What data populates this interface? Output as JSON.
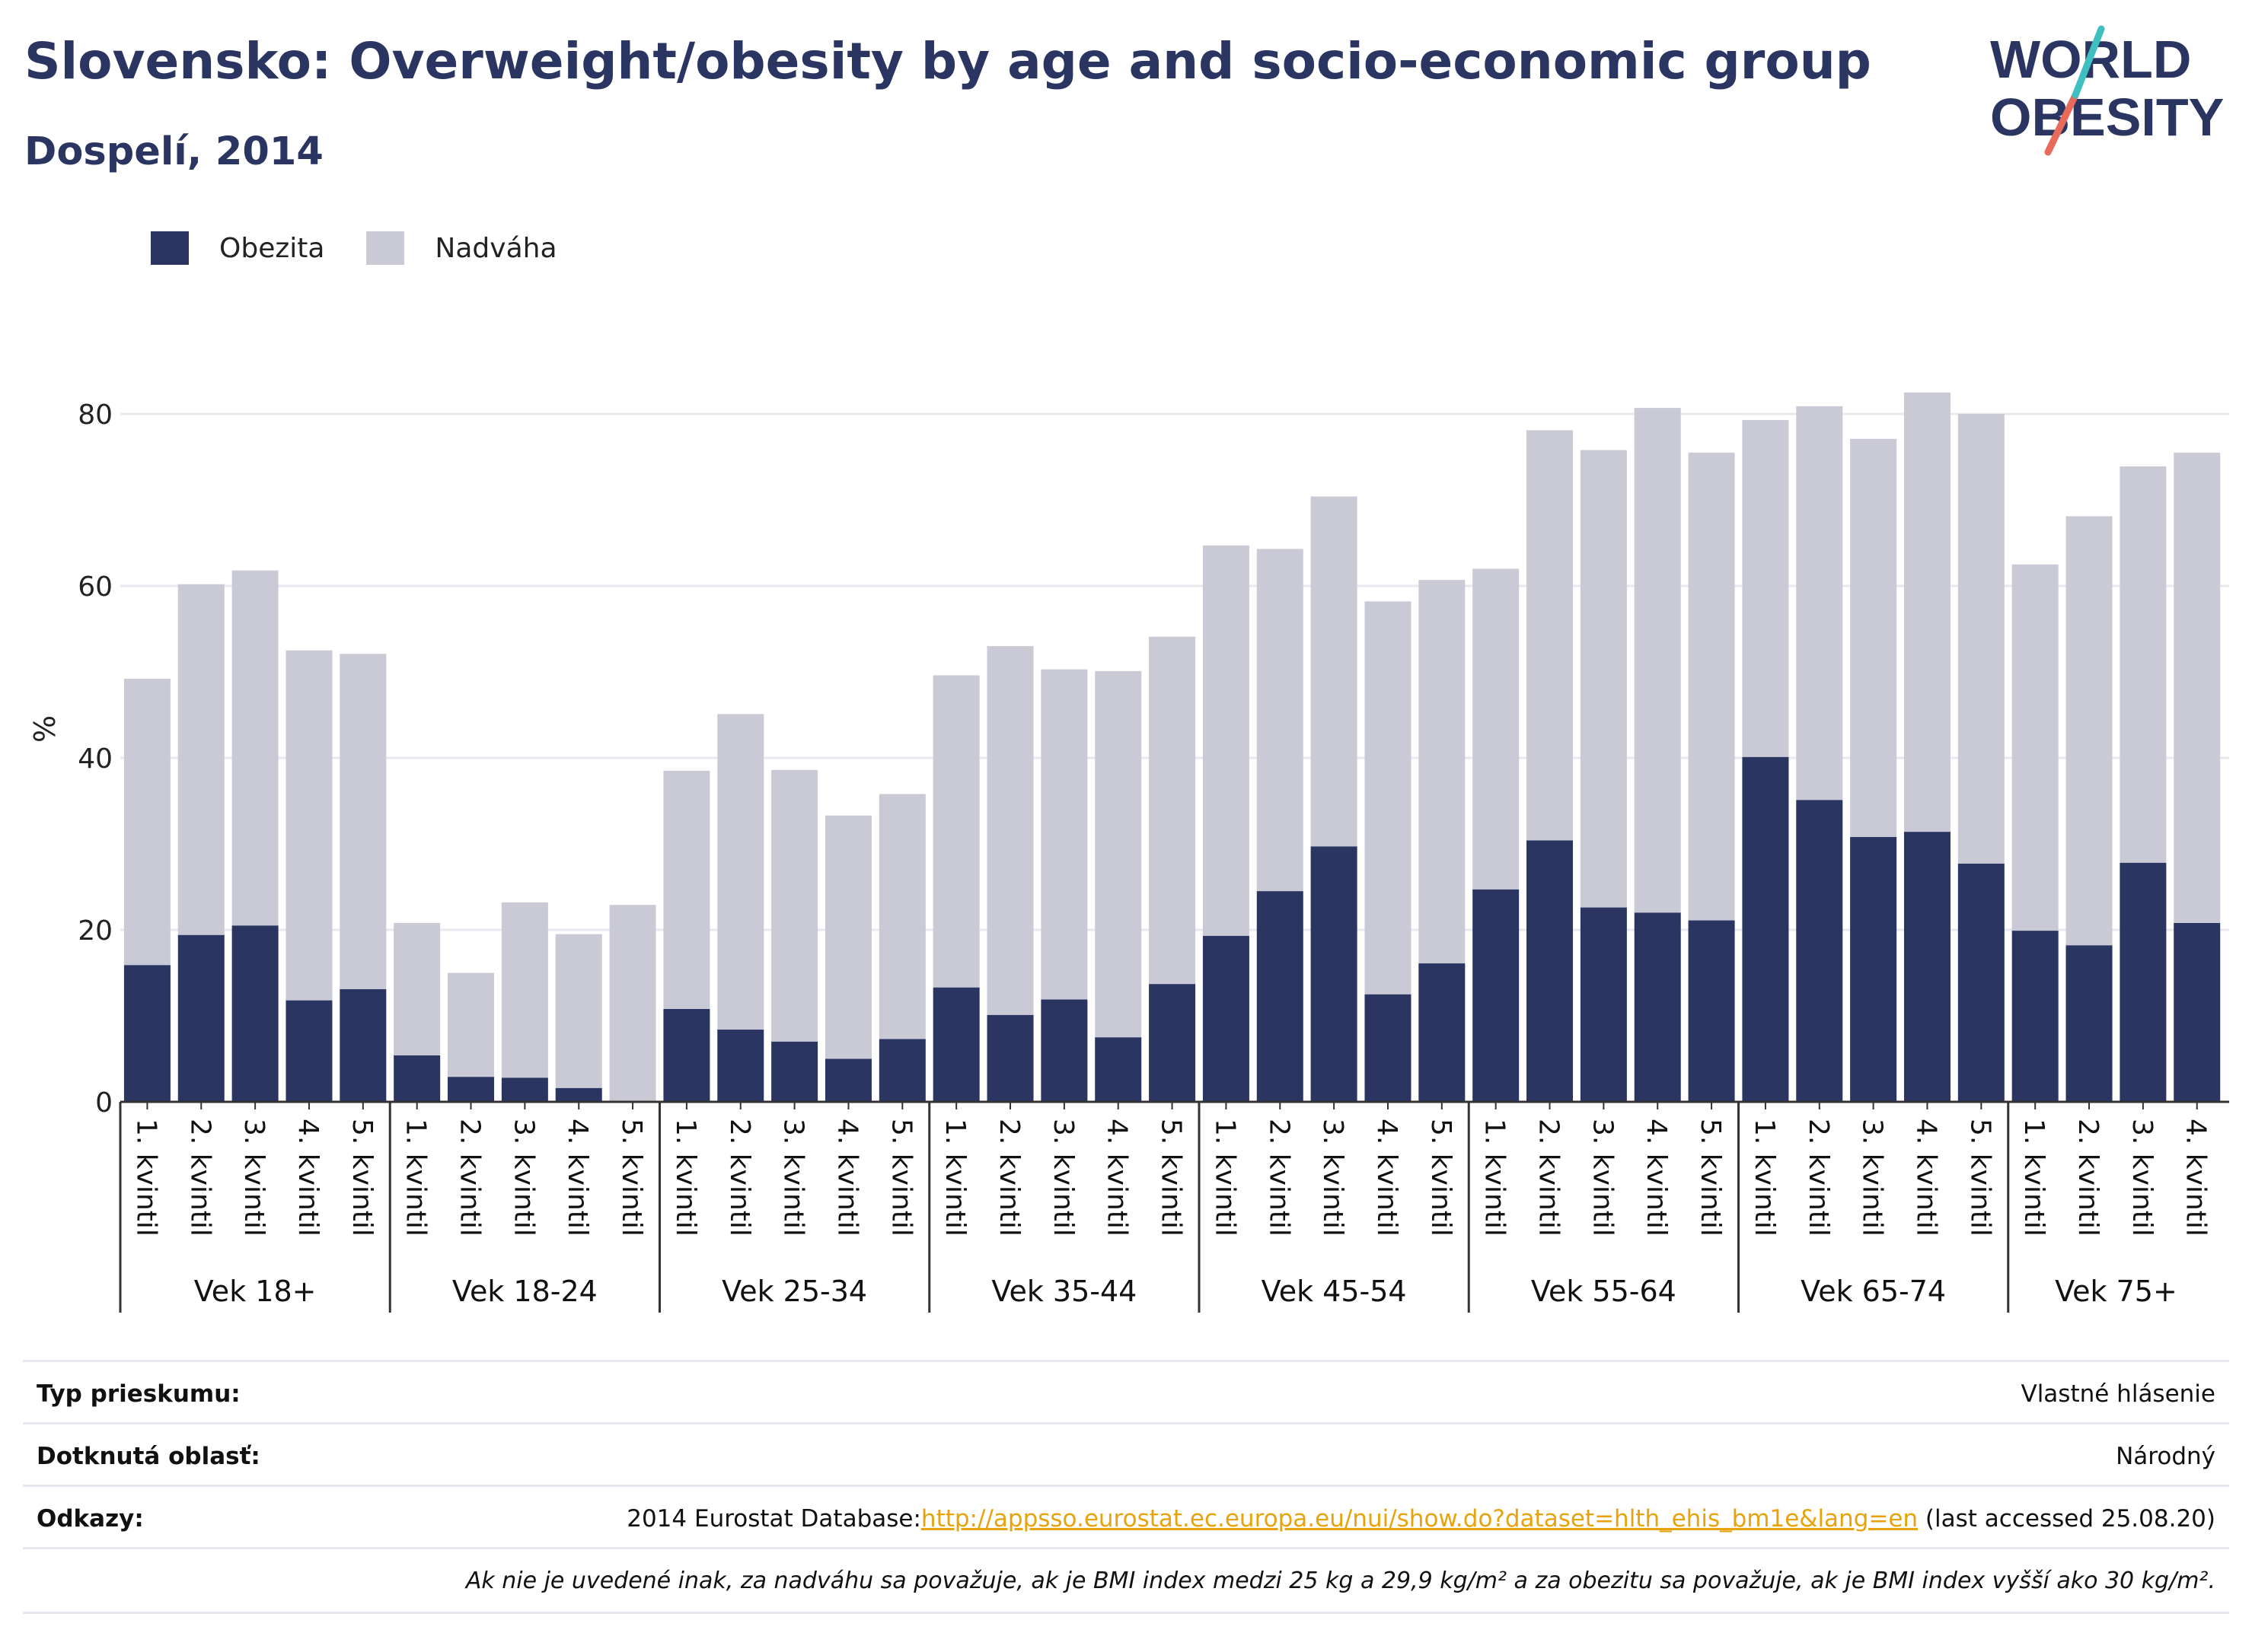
{
  "header": {
    "title": "Slovensko: Overweight/obesity by age and socio-economic group",
    "subtitle": "Dospelí, 2014"
  },
  "logo": {
    "line1": "WORLD",
    "line2": "OBESITY"
  },
  "colors": {
    "obesity": "#2a3562",
    "overweight": "#c9cad6",
    "grid": "#e8e8ee",
    "axis": "#333333",
    "link": "#e8a20c"
  },
  "chart_data": {
    "type": "bar",
    "stacked": true,
    "ylabel": "%",
    "ylim": [
      0,
      90
    ],
    "yticks": [
      0,
      20,
      40,
      60,
      80
    ],
    "grid": true,
    "legend_position": "top-left",
    "series": [
      {
        "name": "Obezita",
        "color": "#2a3562"
      },
      {
        "name": "Nadváha",
        "color": "#c9cad6"
      }
    ],
    "groups": [
      {
        "label": "Vek 18+",
        "bars": [
          {
            "label": "1. kvintil",
            "obesity": 15.9,
            "total": 49.2
          },
          {
            "label": "2. kvintil",
            "obesity": 19.4,
            "total": 60.2
          },
          {
            "label": "3. kvintil",
            "obesity": 20.5,
            "total": 61.8
          },
          {
            "label": "4. kvintil",
            "obesity": 11.8,
            "total": 52.5
          },
          {
            "label": "5. kvintil",
            "obesity": 13.1,
            "total": 52.1
          }
        ]
      },
      {
        "label": "Vek 18-24",
        "bars": [
          {
            "label": "1. kvintil",
            "obesity": 5.4,
            "total": 20.8
          },
          {
            "label": "2. kvintil",
            "obesity": 2.9,
            "total": 15.0
          },
          {
            "label": "3. kvintil",
            "obesity": 2.8,
            "total": 23.2
          },
          {
            "label": "4. kvintil",
            "obesity": 1.6,
            "total": 19.5
          },
          {
            "label": "5. kvintil",
            "obesity": 0.0,
            "total": 22.9
          }
        ]
      },
      {
        "label": "Vek 25-34",
        "bars": [
          {
            "label": "1. kvintil",
            "obesity": 10.8,
            "total": 38.5
          },
          {
            "label": "2. kvintil",
            "obesity": 8.4,
            "total": 45.1
          },
          {
            "label": "3. kvintil",
            "obesity": 7.0,
            "total": 38.6
          },
          {
            "label": "4. kvintil",
            "obesity": 5.0,
            "total": 33.3
          },
          {
            "label": "5. kvintil",
            "obesity": 7.3,
            "total": 35.8
          }
        ]
      },
      {
        "label": "Vek 35-44",
        "bars": [
          {
            "label": "1. kvintil",
            "obesity": 13.3,
            "total": 49.6
          },
          {
            "label": "2. kvintil",
            "obesity": 10.1,
            "total": 53.0
          },
          {
            "label": "3. kvintil",
            "obesity": 11.9,
            "total": 50.3
          },
          {
            "label": "4. kvintil",
            "obesity": 7.5,
            "total": 50.1
          },
          {
            "label": "5. kvintil",
            "obesity": 13.7,
            "total": 54.1
          }
        ]
      },
      {
        "label": "Vek 45-54",
        "bars": [
          {
            "label": "1. kvintil",
            "obesity": 19.3,
            "total": 64.7
          },
          {
            "label": "2. kvintil",
            "obesity": 24.5,
            "total": 64.3
          },
          {
            "label": "3. kvintil",
            "obesity": 29.7,
            "total": 70.4
          },
          {
            "label": "4. kvintil",
            "obesity": 12.5,
            "total": 58.2
          },
          {
            "label": "5. kvintil",
            "obesity": 16.1,
            "total": 60.7
          }
        ]
      },
      {
        "label": "Vek 55-64",
        "bars": [
          {
            "label": "1. kvintil",
            "obesity": 24.7,
            "total": 62.0
          },
          {
            "label": "2. kvintil",
            "obesity": 30.4,
            "total": 78.1
          },
          {
            "label": "3. kvintil",
            "obesity": 22.6,
            "total": 75.8
          },
          {
            "label": "4. kvintil",
            "obesity": 22.0,
            "total": 80.7
          },
          {
            "label": "5. kvintil",
            "obesity": 21.1,
            "total": 75.5
          }
        ]
      },
      {
        "label": "Vek 65-74",
        "bars": [
          {
            "label": "1. kvintil",
            "obesity": 40.1,
            "total": 79.3
          },
          {
            "label": "2. kvintil",
            "obesity": 35.1,
            "total": 80.9
          },
          {
            "label": "3. kvintil",
            "obesity": 30.8,
            "total": 77.1
          },
          {
            "label": "4. kvintil",
            "obesity": 31.4,
            "total": 82.5
          },
          {
            "label": "5. kvintil",
            "obesity": 27.7,
            "total": 80.0
          }
        ]
      },
      {
        "label": "Vek 75+",
        "bars": [
          {
            "label": "1. kvintil",
            "obesity": 19.9,
            "total": 62.5
          },
          {
            "label": "2. kvintil",
            "obesity": 18.2,
            "total": 68.1
          },
          {
            "label": "3. kvintil",
            "obesity": 27.8,
            "total": 73.9
          },
          {
            "label": "4. kvintil",
            "obesity": 20.8,
            "total": 75.5
          }
        ]
      }
    ]
  },
  "info": {
    "survey_type_label": "Typ prieskumu:",
    "survey_type_value": "Vlastné hlásenie",
    "area_label": "Dotknutá oblasť:",
    "area_value": "Národný",
    "refs_label": "Odkazy:",
    "refs_prefix": "2014 Eurostat Database:",
    "refs_link": "http://appsso.eurostat.ec.europa.eu/nui/show.do?dataset=hlth_ehis_bm1e&lang=en",
    "refs_suffix": " (last accessed 25.08.20)",
    "note": "Ak nie je uvedené inak, za nadváhu sa považuje, ak je BMI index medzi 25 kg a 29,9 kg/m² a za obezitu sa považuje, ak je BMI index vyšší ako 30 kg/m²."
  }
}
